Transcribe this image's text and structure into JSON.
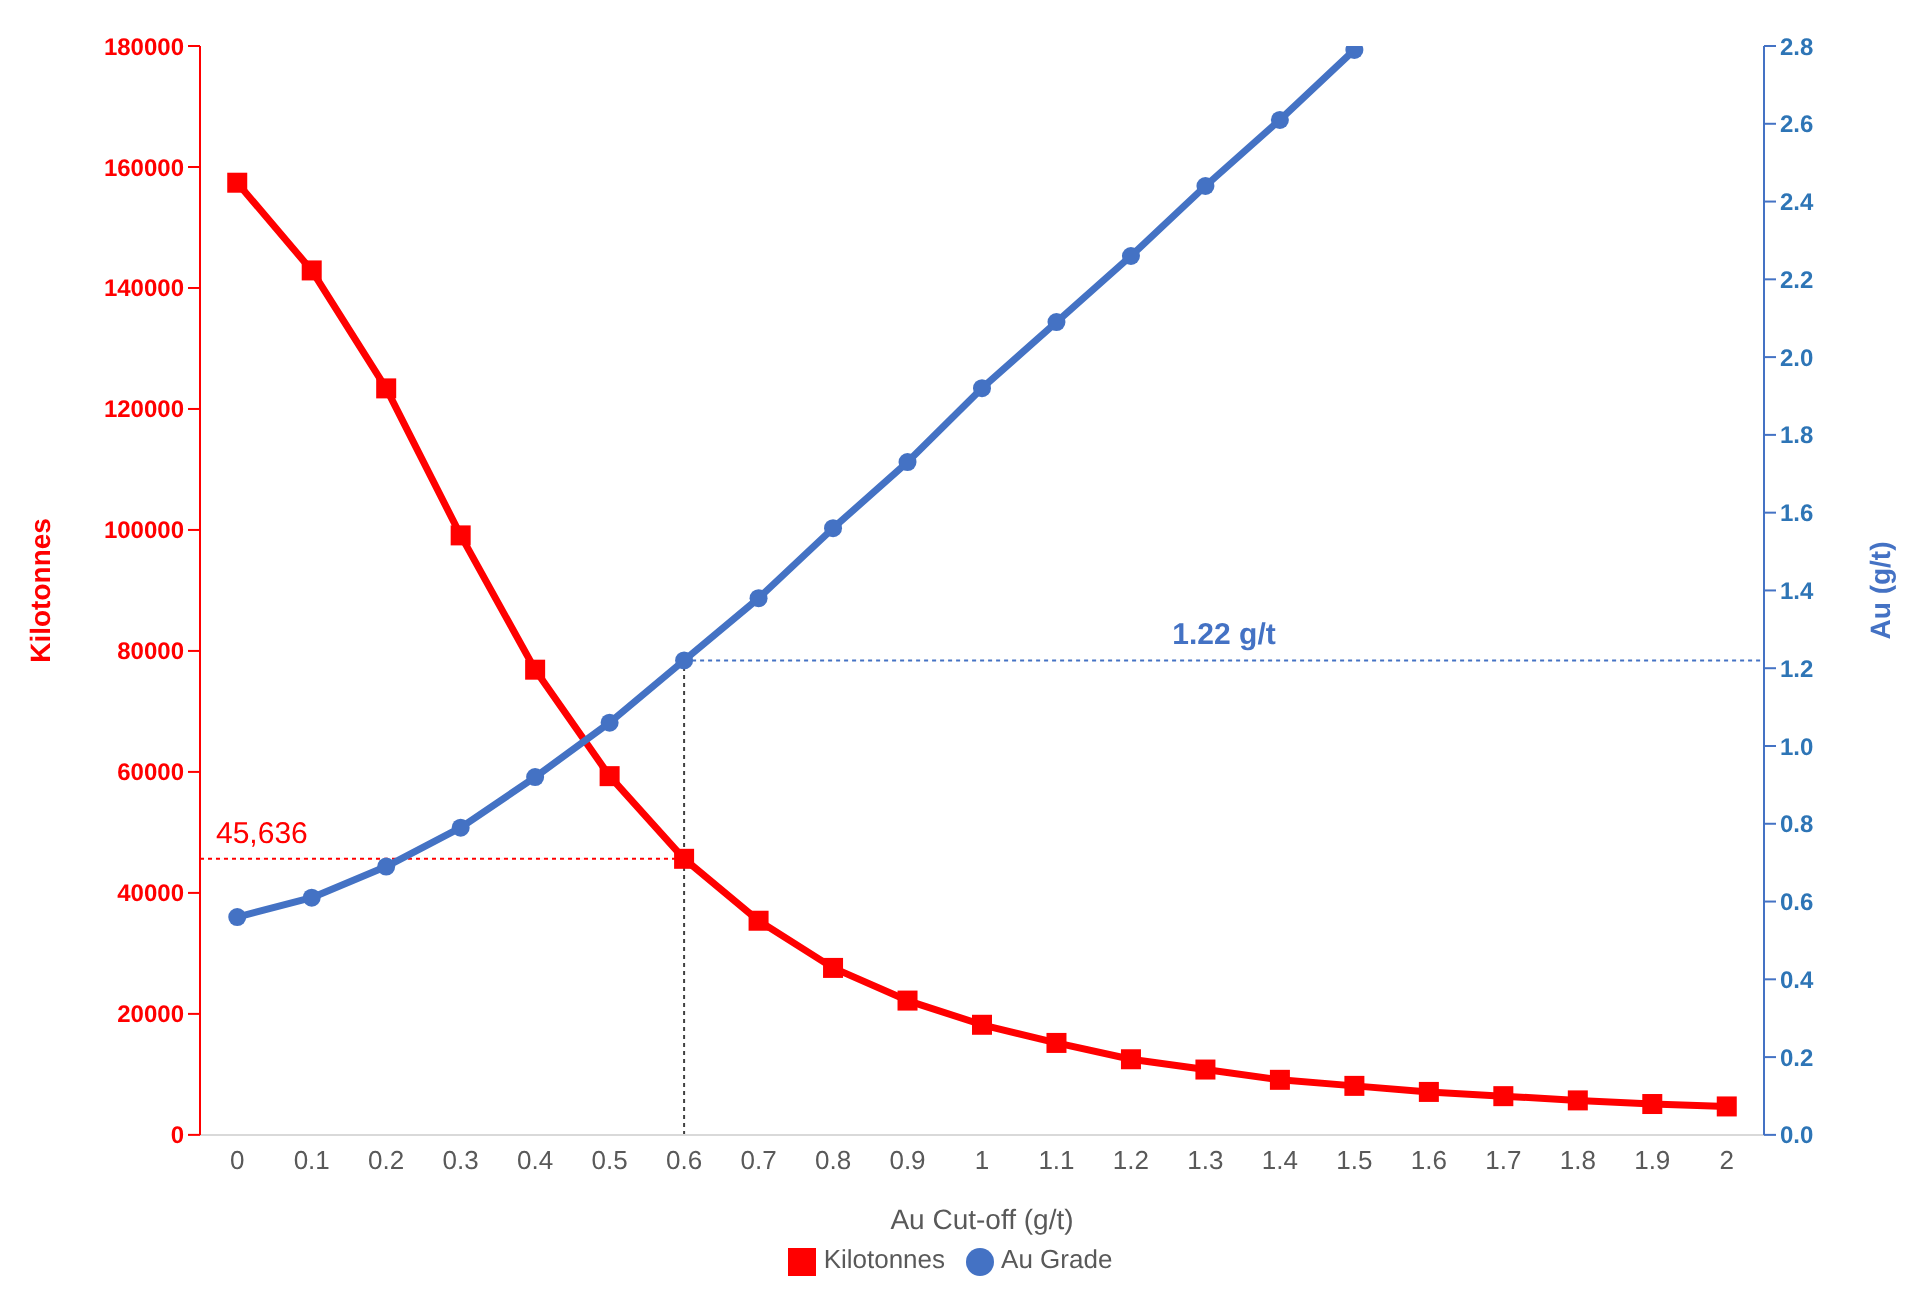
{
  "chart_data": {
    "type": "line",
    "xlabel": "Au Cut-off (g/t)",
    "ylabel": "Kilotonnes",
    "y2label": "Au (g/t)",
    "categories": [
      "0",
      "0.1",
      "0.2",
      "0.3",
      "0.4",
      "0.5",
      "0.6",
      "0.7",
      "0.8",
      "0.9",
      "1",
      "1.1",
      "1.2",
      "1.3",
      "1.4",
      "1.5",
      "1.6",
      "1.7",
      "1.8",
      "1.9",
      "2"
    ],
    "series": [
      {
        "name": "Kilotonnes",
        "color": "#ff0000",
        "marker": "square",
        "values": [
          157400,
          142900,
          123400,
          99100,
          76900,
          59300,
          45636,
          35400,
          27600,
          22200,
          18200,
          15200,
          12500,
          10800,
          9100,
          8100,
          7100,
          6400,
          5700,
          5100,
          4700
        ]
      },
      {
        "name": "Au Grade",
        "color": "#4472c4",
        "marker": "circle",
        "axis": "y2",
        "values": [
          0.56,
          0.61,
          0.69,
          0.79,
          0.92,
          1.06,
          1.22,
          1.38,
          1.56,
          1.73,
          1.92,
          2.09,
          2.26,
          2.44,
          2.61,
          2.79,
          null,
          null,
          null,
          null,
          null
        ]
      }
    ],
    "ylim": [
      0,
      180000
    ],
    "yticks": [
      0,
      20000,
      40000,
      60000,
      80000,
      100000,
      120000,
      140000,
      160000,
      180000
    ],
    "y2lim": [
      0,
      2.8
    ],
    "y2ticks": [
      {
        "value": 0,
        "label": "0.0"
      },
      {
        "value": 0.2,
        "label": "0.2"
      },
      {
        "value": 0.4,
        "label": "0.4"
      },
      {
        "value": 0.6,
        "label": "0.6"
      },
      {
        "value": 0.8,
        "label": "0.8"
      },
      {
        "value": 1,
        "label": "1.0"
      },
      {
        "value": 1.2,
        "label": "1.2"
      },
      {
        "value": 1.4,
        "label": "1.4"
      },
      {
        "value": 1.6,
        "label": "1.6"
      },
      {
        "value": 1.8,
        "label": "1.8"
      },
      {
        "value": 2,
        "label": "2.0"
      },
      {
        "value": 2.2,
        "label": "2.2"
      },
      {
        "value": 2.4,
        "label": "2.4"
      },
      {
        "value": 2.6,
        "label": "2.6"
      },
      {
        "value": 2.8,
        "label": "2.8"
      }
    ],
    "ref_lines": [
      {
        "axis": "y",
        "value": 45636,
        "label": "45,636",
        "color": "#ff0000",
        "line_style": "dotted"
      },
      {
        "axis": "x",
        "value": "0.6",
        "color": "#404040",
        "line_style": "dotted"
      },
      {
        "axis": "y2",
        "value": 1.22,
        "label": "1.22 g/t",
        "color": "#4472c4",
        "line_style": "dotted"
      }
    ],
    "grid": false,
    "legend": "bottom"
  }
}
